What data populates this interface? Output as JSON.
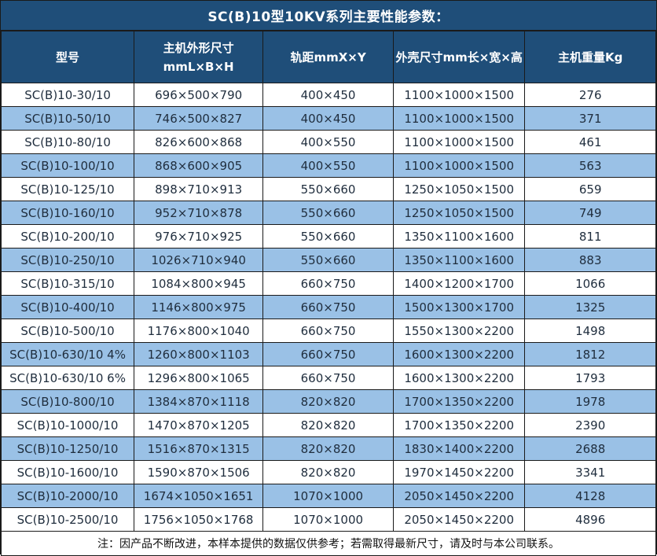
{
  "title": "SC(B)10型10KV系列主要性能参数：",
  "colors": {
    "header_bg": "#1f4e79",
    "row_alt_bg": "#9ac1e6",
    "row_bg": "#ffffff",
    "border": "#1a1a1a",
    "header_text": "#ffffff",
    "cell_text": "#1f2d3d",
    "note_text": "#111111"
  },
  "table": {
    "columns": [
      {
        "label": "型号"
      },
      {
        "label": "主机外形尺寸",
        "label2": "mmL×B×H"
      },
      {
        "label": "轨距mmX×Y"
      },
      {
        "label": "外壳尺寸mm长×宽×高"
      },
      {
        "label": "主机重量Kg"
      }
    ],
    "rows": [
      [
        "SC(B)10-30/10",
        "696×500×790",
        "400×450",
        "1100×1000×1500",
        "276"
      ],
      [
        "SC(B)10-50/10",
        "746×500×827",
        "400×450",
        "1100×1000×1500",
        "371"
      ],
      [
        "SC(B)10-80/10",
        "826×600×868",
        "400×550",
        "1100×1000×1500",
        "461"
      ],
      [
        "SC(B)10-100/10",
        "868×600×905",
        "400×550",
        "1100×1000×1500",
        "563"
      ],
      [
        "SC(B)10-125/10",
        "898×710×913",
        "550×660",
        "1250×1050×1500",
        "659"
      ],
      [
        "SC(B)10-160/10",
        "952×710×878",
        "550×660",
        "1250×1050×1500",
        "749"
      ],
      [
        "SC(B)10-200/10",
        "976×710×925",
        "550×660",
        "1350×1100×1600",
        "811"
      ],
      [
        "SC(B)10-250/10",
        "1026×710×940",
        "550×660",
        "1350×1100×1600",
        "883"
      ],
      [
        "SC(B)10-315/10",
        "1084×800×945",
        "660×750",
        "1400×1200×1700",
        "1066"
      ],
      [
        "SC(B)10-400/10",
        "1146×800×975",
        "660×750",
        "1500×1300×1700",
        "1325"
      ],
      [
        "SC(B)10-500/10",
        "1176×800×1040",
        "660×750",
        "1550×1300×2200",
        "1498"
      ],
      [
        "SC(B)10-630/10 4%",
        "1260×800×1103",
        "660×750",
        "1600×1300×2200",
        "1812"
      ],
      [
        "SC(B)10-630/10 6%",
        "1296×800×1065",
        "660×750",
        "1600×1300×2200",
        "1793"
      ],
      [
        "SC(B)10-800/10",
        "1384×870×1118",
        "820×820",
        "1700×1350×2200",
        "1978"
      ],
      [
        "SC(B)10-1000/10",
        "1470×870×1205",
        "820×820",
        "1700×1350×2200",
        "2390"
      ],
      [
        "SC(B)10-1250/10",
        "1516×870×1315",
        "820×820",
        "1830×1400×2200",
        "2688"
      ],
      [
        "SC(B)10-1600/10",
        "1590×870×1506",
        "820×820",
        "1970×1450×2200",
        "3341"
      ],
      [
        "SC(B)10-2000/10",
        "1674×1050×1651",
        "1070×1000",
        "2050×1450×2200",
        "4128"
      ],
      [
        "SC(B)10-2500/10",
        "1756×1050×1768",
        "1070×1000",
        "2050×1450×2200",
        "4896"
      ]
    ],
    "note": "注：因产品不断改进，本样本提供的数据仅供参考；若需取得最新尺寸，请及时与本公司联系。"
  }
}
